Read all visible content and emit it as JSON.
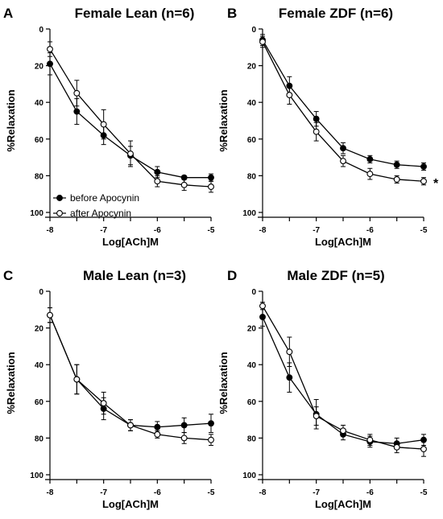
{
  "chart_data": [
    {
      "panel": "A",
      "type": "line",
      "title": "Female Lean (n=6)",
      "xlabel": "Log[ACh]M",
      "ylabel": "%Relaxation",
      "xlim": [
        -8,
        -5
      ],
      "ylim": [
        0,
        100
      ],
      "y_inverted": true,
      "xticks": [
        -8,
        -7,
        -6,
        -5
      ],
      "yticks": [
        0,
        20,
        40,
        60,
        80,
        100
      ],
      "x": [
        -8,
        -7.5,
        -7,
        -6.5,
        -6,
        -5.5,
        -5
      ],
      "legend": {
        "position": "bottom-left"
      },
      "series": [
        {
          "name": "before Apocynin",
          "marker": "filled-circle",
          "values": [
            19,
            45,
            58,
            69,
            78,
            81,
            81
          ],
          "errors": [
            6,
            7,
            5,
            5,
            3,
            1,
            2
          ]
        },
        {
          "name": "after Apocynin",
          "marker": "open-circle",
          "values": [
            11,
            35,
            52,
            68,
            83,
            85,
            86
          ],
          "errors": [
            4,
            7,
            8,
            7,
            3,
            3,
            3
          ]
        }
      ],
      "annotations": []
    },
    {
      "panel": "B",
      "type": "line",
      "title": "Female ZDF (n=6)",
      "xlabel": "Log[ACh]M",
      "ylabel": "%Relaxation",
      "xlim": [
        -8,
        -5
      ],
      "ylim": [
        0,
        100
      ],
      "y_inverted": true,
      "xticks": [
        -8,
        -7,
        -6,
        -5
      ],
      "yticks": [
        0,
        20,
        40,
        60,
        80,
        100
      ],
      "x": [
        -8,
        -7.5,
        -7,
        -6.5,
        -6,
        -5.5,
        -5
      ],
      "series": [
        {
          "name": "before Apocynin",
          "marker": "filled-circle",
          "values": [
            6,
            31,
            49,
            65,
            71,
            74,
            75
          ],
          "errors": [
            3,
            5,
            4,
            3,
            2,
            2,
            2
          ]
        },
        {
          "name": "after Apocynin",
          "marker": "open-circle",
          "values": [
            7,
            36,
            56,
            72,
            79,
            82,
            83
          ],
          "errors": [
            3,
            5,
            5,
            3,
            3,
            2,
            2
          ]
        }
      ],
      "annotations": [
        {
          "text": "*"
        }
      ]
    },
    {
      "panel": "C",
      "type": "line",
      "title": "Male Lean (n=3)",
      "xlabel": "Log[ACh]M",
      "ylabel": "%Relaxation",
      "xlim": [
        -8,
        -5
      ],
      "ylim": [
        0,
        100
      ],
      "y_inverted": true,
      "xticks": [
        -8,
        -7,
        -6,
        -5
      ],
      "yticks": [
        0,
        20,
        40,
        60,
        80,
        100
      ],
      "x": [
        -8,
        -7.5,
        -7,
        -6.5,
        -6,
        -5.5,
        -5
      ],
      "series": [
        {
          "name": "before Apocynin",
          "marker": "filled-circle",
          "values": [
            13,
            48,
            64,
            73,
            74,
            73,
            72
          ],
          "errors": [
            4,
            8,
            6,
            3,
            3,
            4,
            5
          ]
        },
        {
          "name": "after Apocynin",
          "marker": "open-circle",
          "values": [
            13,
            48,
            61,
            73,
            78,
            80,
            81
          ],
          "errors": [
            4,
            8,
            6,
            3,
            2,
            3,
            3
          ]
        }
      ],
      "annotations": []
    },
    {
      "panel": "D",
      "type": "line",
      "title": "Male ZDF (n=5)",
      "xlabel": "Log[ACh]M",
      "ylabel": "%Relaxation",
      "xlim": [
        -8,
        -5
      ],
      "ylim": [
        0,
        100
      ],
      "y_inverted": true,
      "xticks": [
        -8,
        -7,
        -6,
        -5
      ],
      "yticks": [
        0,
        20,
        40,
        60,
        80,
        100
      ],
      "x": [
        -8,
        -7.5,
        -7,
        -6.5,
        -6,
        -5.5,
        -5
      ],
      "series": [
        {
          "name": "before Apocynin",
          "marker": "filled-circle",
          "values": [
            14,
            47,
            67,
            78,
            82,
            83,
            81
          ],
          "errors": [
            5,
            8,
            8,
            3,
            3,
            3,
            3
          ]
        },
        {
          "name": "after Apocynin",
          "marker": "open-circle",
          "values": [
            8,
            33,
            68,
            76,
            81,
            85,
            86
          ],
          "errors": [
            2,
            8,
            5,
            3,
            3,
            3,
            4
          ]
        }
      ],
      "annotations": []
    }
  ]
}
